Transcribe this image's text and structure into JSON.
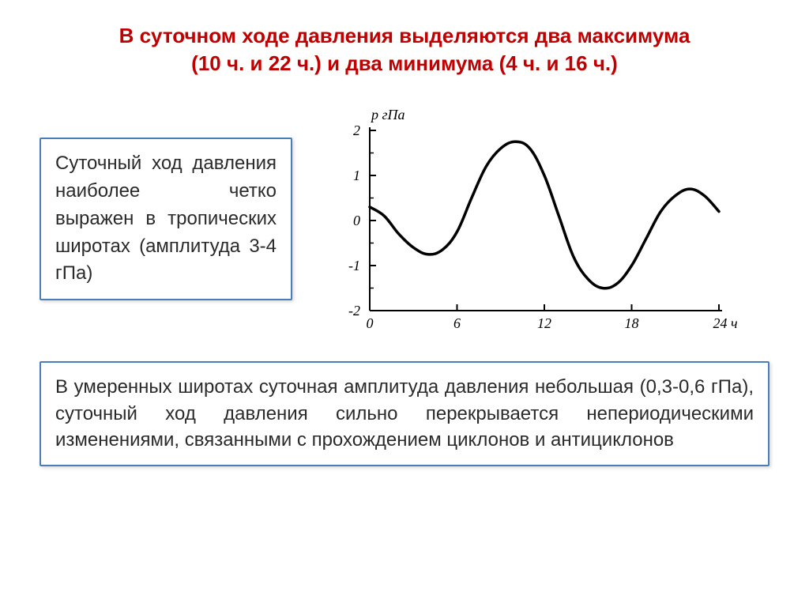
{
  "title_line1": "В суточном ходе давления выделяются два максимума",
  "title_line2": "(10 ч. и 22 ч.) и два минимума (4 ч. и 16 ч.)",
  "box_left_text": "Суточный ход давления наиболее четко выражен в тропических широтах (амплитуда 3-4 гПа)",
  "box_bottom_text": "В умеренных широтах суточная амплитуда давления небольшая (0,3-0,6 гПа), суточный ход давления сильно перекрывается непериодическими изменениями, связанными с прохождением циклонов и антициклонов",
  "chart": {
    "type": "line",
    "ylabel": "p гПа",
    "xlim": [
      0,
      24
    ],
    "ylim": [
      -2,
      2
    ],
    "xticks": [
      0,
      6,
      12,
      18,
      24
    ],
    "xtick_labels": [
      "0",
      "6",
      "12",
      "18",
      "24 ч"
    ],
    "yticks": [
      -2,
      -1,
      0,
      1,
      2
    ],
    "ytick_labels": [
      "-2",
      "-1",
      "0",
      "1",
      "2"
    ],
    "ytick_minor": [
      -1.5,
      -0.5,
      0.5,
      1.5
    ],
    "line_color": "#000000",
    "line_width": 3.5,
    "axis_color": "#000000",
    "axis_width": 2,
    "tick_font_size": 18,
    "label_font_size": 18,
    "font_style": "italic",
    "background": "#ffffff",
    "points": [
      [
        0,
        0.3
      ],
      [
        1,
        0.1
      ],
      [
        2,
        -0.3
      ],
      [
        3,
        -0.6
      ],
      [
        4,
        -0.75
      ],
      [
        5,
        -0.65
      ],
      [
        6,
        -0.25
      ],
      [
        7,
        0.5
      ],
      [
        8,
        1.2
      ],
      [
        9,
        1.6
      ],
      [
        10,
        1.75
      ],
      [
        11,
        1.6
      ],
      [
        12,
        1.0
      ],
      [
        13,
        0.1
      ],
      [
        14,
        -0.8
      ],
      [
        15,
        -1.3
      ],
      [
        16,
        -1.5
      ],
      [
        17,
        -1.4
      ],
      [
        18,
        -1.0
      ],
      [
        19,
        -0.4
      ],
      [
        20,
        0.2
      ],
      [
        21,
        0.55
      ],
      [
        22,
        0.7
      ],
      [
        23,
        0.55
      ],
      [
        24,
        0.2
      ]
    ]
  }
}
